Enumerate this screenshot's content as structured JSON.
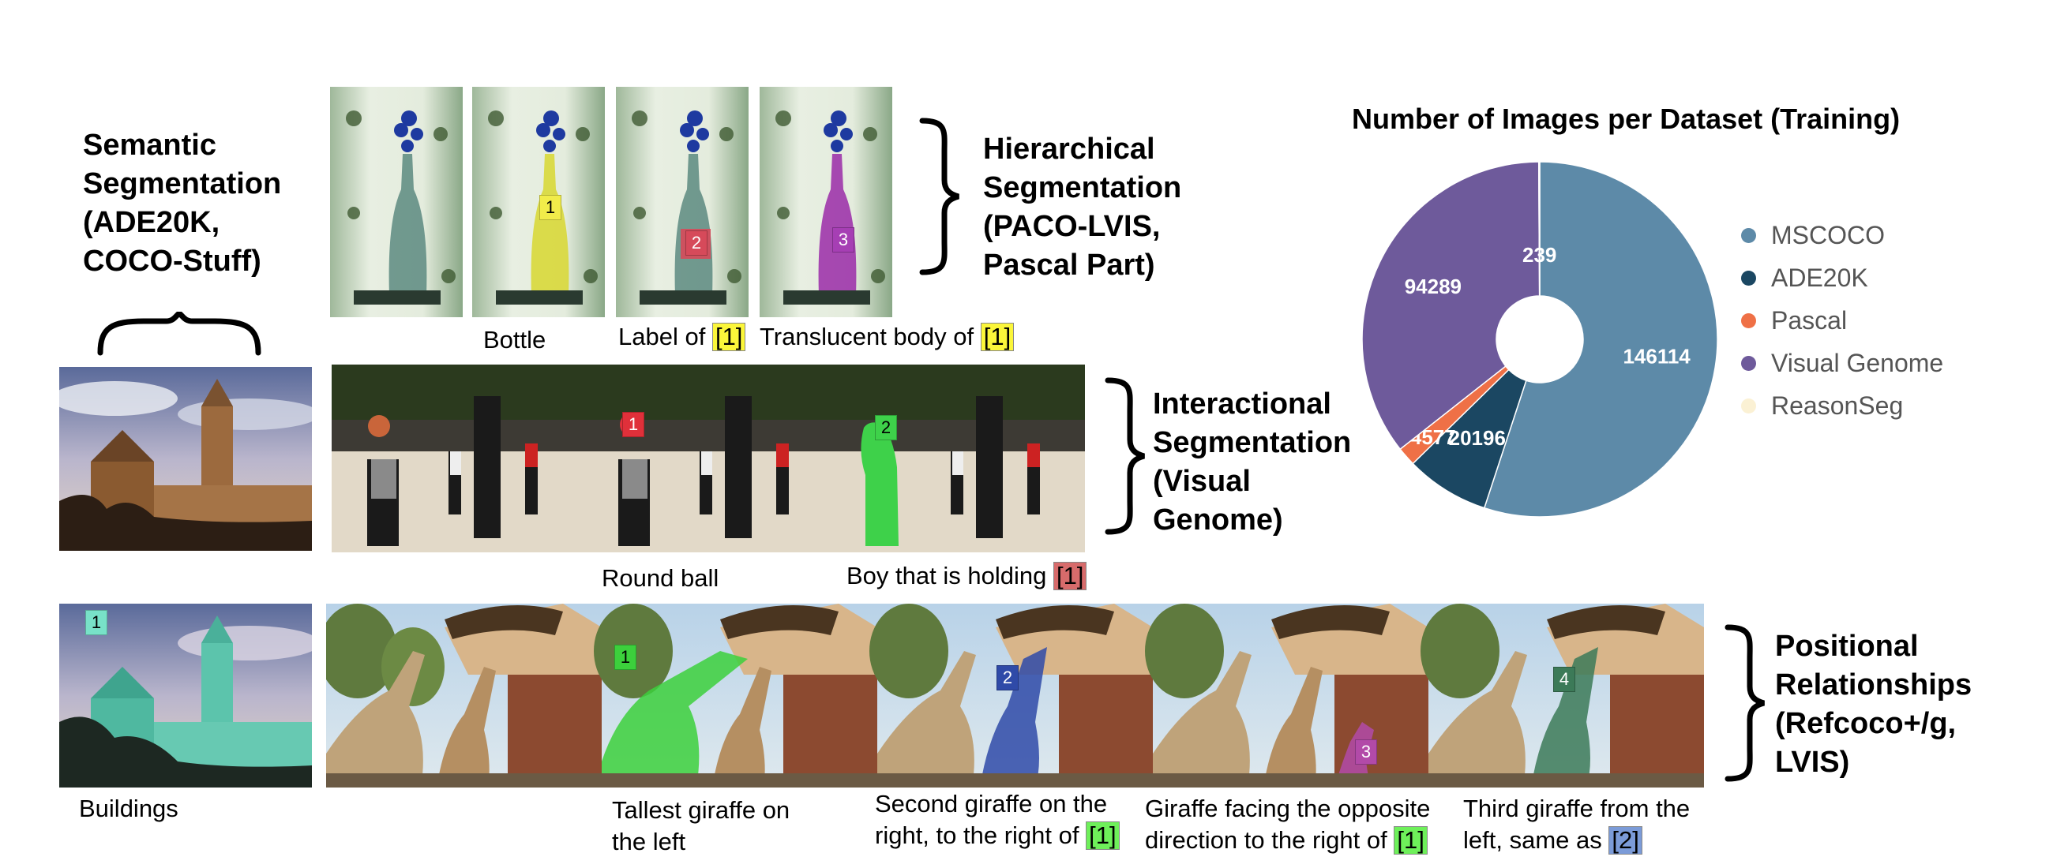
{
  "figure": {
    "semantic_title": [
      "Semantic",
      "Segmentation",
      "(ADE20K,",
      "COCO-Stuff)"
    ],
    "hierarchical_title": [
      "Hierarchical",
      "Segmentation",
      "(PACO-LVIS,",
      "Pascal Part)"
    ],
    "interactional_title": [
      "Interactional",
      "Segmentation",
      "(Visual",
      "Genome)"
    ],
    "positional_title": [
      "Positional",
      "Relationships",
      "(Refcoco+/g,",
      "LVIS)"
    ],
    "markers": {
      "m1": "1",
      "m2": "2",
      "m3": "3",
      "m4": "4"
    },
    "captions": {
      "bottle": "Bottle",
      "label_of": "Label of",
      "translucent": "Translucent body of",
      "round_ball": "Round ball",
      "boy_holding": "Boy that is holding",
      "buildings": "Buildings",
      "tallest_1": "Tallest giraffe on",
      "tallest_2": "the left",
      "second_1": "Second giraffe on the",
      "second_2": "right, to the right of",
      "facing_1": "Giraffe facing the opposite",
      "facing_2": "direction to the right of",
      "third_1": "Third giraffe from the",
      "third_2": "left, same as"
    },
    "tags": {
      "t1": "[1]",
      "t2": "[2]"
    }
  },
  "chart_data": {
    "type": "pie",
    "title": "Number of Images per Dataset (Training)",
    "categories": [
      "MSCOCO",
      "ADE20K",
      "Pascal",
      "Visual Genome",
      "ReasonSeg"
    ],
    "values": [
      146114,
      20196,
      4577,
      94289,
      239
    ],
    "value_labels": [
      "146114",
      "20196",
      "4577",
      "94289",
      "239"
    ],
    "colors": [
      "#5d8aa8",
      "#1b4762",
      "#ef7046",
      "#6e5a9b",
      "#fbf1d4"
    ],
    "donut": true,
    "legend_position": "right"
  }
}
